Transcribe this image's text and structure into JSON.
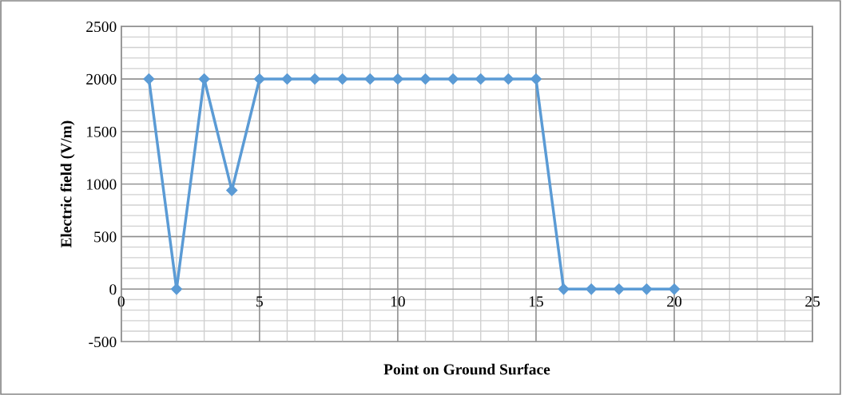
{
  "chart_data": {
    "type": "line",
    "xlabel": "Point on Ground Surface",
    "ylabel": "Electric field (V/m)",
    "x": [
      1,
      2,
      3,
      4,
      5,
      6,
      7,
      8,
      9,
      10,
      11,
      12,
      13,
      14,
      15,
      16,
      17,
      18,
      19,
      20
    ],
    "series": [
      {
        "color": "#5b9bd5",
        "values": [
          2000,
          0,
          2000,
          940,
          2000,
          2000,
          2000,
          2000,
          2000,
          2000,
          2000,
          2000,
          2000,
          2000,
          2000,
          0,
          0,
          0,
          0,
          0
        ]
      }
    ],
    "xlim": [
      0,
      25
    ],
    "xticks": [
      0,
      5,
      10,
      15,
      20,
      25
    ],
    "ylim": [
      -500,
      2500
    ],
    "yticks": [
      -500,
      0,
      500,
      1000,
      1500,
      2000,
      2500
    ],
    "grid": true,
    "marker": "diamond",
    "line_style": "solid",
    "legend": false
  }
}
